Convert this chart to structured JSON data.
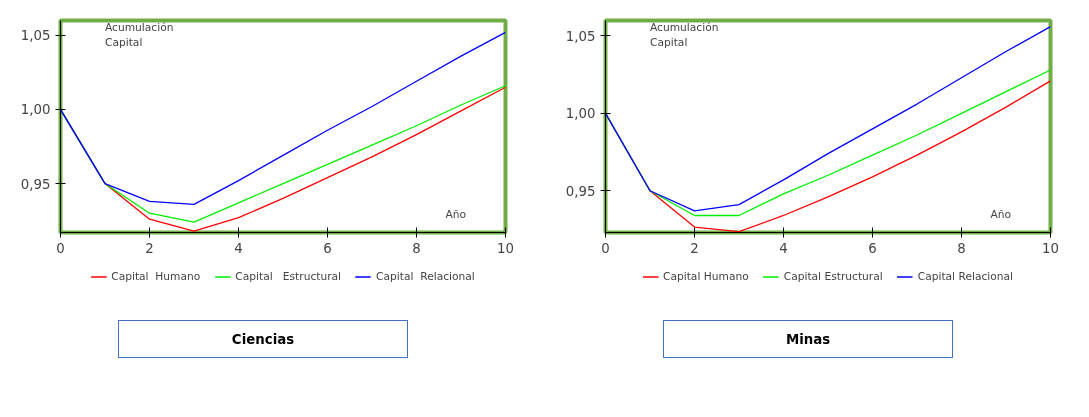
{
  "chart_data": [
    {
      "type": "line",
      "xlabel": "Año",
      "ylabel": "Acumulación Capital",
      "x": [
        0,
        1,
        2,
        3,
        4,
        5,
        6,
        7,
        8,
        9,
        10
      ],
      "series": [
        {
          "name": "Capital  Humano",
          "color": "#ff0000",
          "values": [
            1.0,
            0.95,
            0.926,
            0.918,
            0.927,
            0.94,
            0.954,
            0.968,
            0.983,
            0.999,
            1.015
          ]
        },
        {
          "name": "Capital   Estructural",
          "color": "#00ee00",
          "values": [
            1.0,
            0.95,
            0.93,
            0.924,
            0.937,
            0.95,
            0.963,
            0.976,
            0.989,
            1.003,
            1.016
          ]
        },
        {
          "name": "Capital  Relacional",
          "color": "#0000ff",
          "values": [
            1.0,
            0.95,
            0.938,
            0.936,
            0.952,
            0.969,
            0.986,
            1.002,
            1.019,
            1.036,
            1.052
          ]
        }
      ],
      "xlim": [
        0,
        10
      ],
      "ylim": [
        0.917,
        1.06
      ],
      "xticks": [
        0,
        2,
        4,
        6,
        8,
        10
      ],
      "yticks": [
        {
          "value": 0.95,
          "label": "0,95"
        },
        {
          "value": 1.0,
          "label": "1,00"
        },
        {
          "value": 1.05,
          "label": "1,05"
        }
      ],
      "grid": false,
      "legend": "bottom",
      "marker": "none",
      "line_style": "solid",
      "annotations": [
        "Ciencias"
      ]
    },
    {
      "type": "line",
      "xlabel": "Año",
      "ylabel": "Acumulación Capital",
      "x": [
        0,
        1,
        2,
        3,
        4,
        5,
        6,
        7,
        8,
        9,
        10
      ],
      "series": [
        {
          "name": "Capital Humano",
          "color": "#ff0000",
          "values": [
            1.0,
            0.95,
            0.9265,
            0.9235,
            0.934,
            0.946,
            0.959,
            0.973,
            0.988,
            1.004,
            1.021
          ]
        },
        {
          "name": "Capital Estructural",
          "color": "#00ee00",
          "values": [
            1.0,
            0.95,
            0.934,
            0.934,
            0.948,
            0.96,
            0.973,
            0.986,
            1.0,
            1.014,
            1.028
          ]
        },
        {
          "name": "Capital Relacional",
          "color": "#0000ff",
          "values": [
            1.0,
            0.95,
            0.937,
            0.941,
            0.957,
            0.974,
            0.99,
            1.006,
            1.023,
            1.04,
            1.056
          ]
        }
      ],
      "xlim": [
        0,
        10
      ],
      "ylim": [
        0.923,
        1.06
      ],
      "xticks": [
        0,
        2,
        4,
        6,
        8,
        10
      ],
      "yticks": [
        {
          "value": 0.95,
          "label": "0,95"
        },
        {
          "value": 1.0,
          "label": "1,00"
        },
        {
          "value": 1.05,
          "label": "1,05"
        }
      ],
      "grid": false,
      "legend": "bottom",
      "marker": "none",
      "line_style": "solid",
      "annotations": [
        "Minas"
      ]
    }
  ]
}
